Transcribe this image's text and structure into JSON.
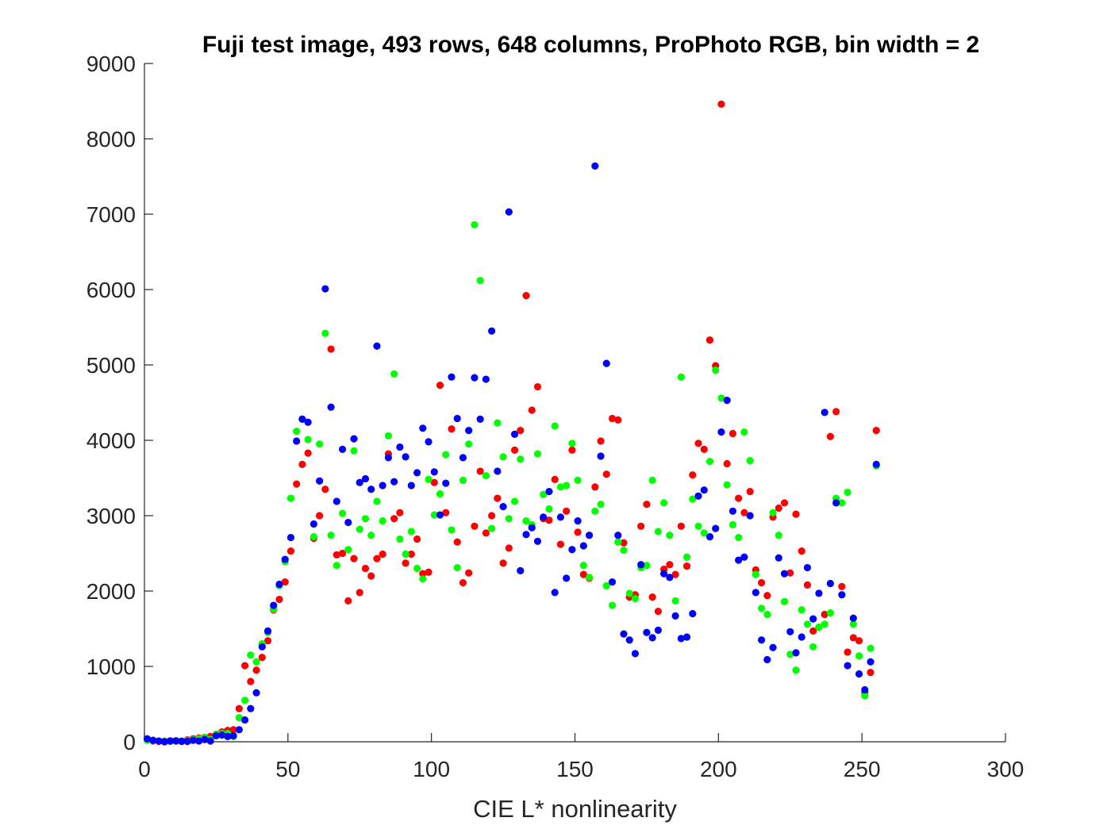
{
  "chart_data": {
    "type": "scatter",
    "title": "Fuji test image, 493 rows, 648 columns, ProPhoto RGB, bin width = 2",
    "xlabel": "CIE L* nonlinearity",
    "ylabel": "",
    "xlim": [
      0,
      300
    ],
    "ylim": [
      0,
      9000
    ],
    "xticks": [
      0,
      50,
      100,
      150,
      200,
      250,
      300
    ],
    "yticks": [
      0,
      1000,
      2000,
      3000,
      4000,
      5000,
      6000,
      7000,
      8000,
      9000
    ],
    "xtick_labels": [
      "0",
      "50",
      "100",
      "150",
      "200",
      "250",
      "300"
    ],
    "ytick_labels": [
      "0",
      "1000",
      "2000",
      "3000",
      "4000",
      "5000",
      "6000",
      "7000",
      "8000",
      "9000"
    ],
    "grid": false,
    "legend": "none",
    "x": [
      1,
      3,
      5,
      7,
      9,
      11,
      13,
      15,
      17,
      19,
      21,
      23,
      25,
      27,
      29,
      31,
      33,
      35,
      37,
      39,
      41,
      43,
      45,
      47,
      49,
      51,
      53,
      55,
      57,
      59,
      61,
      63,
      65,
      67,
      69,
      71,
      73,
      75,
      77,
      79,
      81,
      83,
      85,
      87,
      89,
      91,
      93,
      95,
      97,
      99,
      101,
      103,
      105,
      107,
      109,
      111,
      113,
      115,
      117,
      119,
      121,
      123,
      125,
      127,
      129,
      131,
      133,
      135,
      137,
      139,
      141,
      143,
      145,
      147,
      149,
      151,
      153,
      155,
      157,
      159,
      161,
      163,
      165,
      167,
      169,
      171,
      173,
      175,
      177,
      179,
      181,
      183,
      185,
      187,
      189,
      191,
      193,
      195,
      197,
      199,
      201,
      203,
      205,
      207,
      209,
      211,
      213,
      215,
      217,
      219,
      221,
      223,
      225,
      227,
      229,
      231,
      233,
      235,
      237,
      239,
      241,
      243,
      245,
      247,
      249,
      251,
      253,
      255
    ],
    "series": [
      {
        "color": "#ff0000",
        "values": [
          30,
          10,
          5,
          8,
          12,
          15,
          10,
          25,
          40,
          50,
          60,
          70,
          100,
          130,
          150,
          160,
          440,
          1010,
          800,
          950,
          1120,
          1340,
          1750,
          1890,
          2120,
          2530,
          3420,
          3680,
          3830,
          2700,
          3000,
          3350,
          5210,
          2480,
          2500,
          1870,
          2430,
          1980,
          2300,
          2200,
          2430,
          2490,
          3820,
          2960,
          3040,
          2370,
          2490,
          2690,
          2230,
          2250,
          3440,
          4730,
          3040,
          4150,
          2650,
          2110,
          2240,
          2860,
          3590,
          2770,
          3000,
          3230,
          2370,
          2570,
          3870,
          4130,
          5920,
          4400,
          4710,
          2960,
          2940,
          3480,
          2620,
          3060,
          3870,
          2780,
          2220,
          2170,
          3380,
          3990,
          3550,
          4290,
          4270,
          2640,
          1920,
          1950,
          2860,
          3150,
          1920,
          1730,
          2290,
          2350,
          2220,
          2860,
          2330,
          3540,
          3960,
          3880,
          5330,
          4990,
          8460,
          3690,
          4090,
          3230,
          3040,
          3320,
          2280,
          2110,
          1940,
          2980,
          3100,
          3170,
          2240,
          3020,
          2530,
          2080,
          1470,
          1520,
          1690,
          4050,
          4380,
          2060,
          1190,
          1380,
          1340,
          650,
          920,
          4130
        ]
      },
      {
        "color": "#00ff00",
        "values": [
          20,
          15,
          10,
          5,
          5,
          10,
          10,
          15,
          30,
          40,
          60,
          30,
          100,
          110,
          110,
          70,
          320,
          550,
          1150,
          1060,
          1300,
          1450,
          1760,
          2070,
          2390,
          3230,
          4120,
          4280,
          4010,
          2720,
          3950,
          5420,
          2740,
          2340,
          3030,
          2550,
          3860,
          2820,
          2960,
          2740,
          3190,
          2930,
          4060,
          4880,
          2690,
          2490,
          2790,
          2300,
          2160,
          3480,
          3010,
          3290,
          3810,
          2810,
          2310,
          3470,
          3950,
          6860,
          6120,
          3530,
          2830,
          4230,
          3780,
          2960,
          3190,
          3750,
          2930,
          2880,
          3820,
          3280,
          3090,
          4190,
          3380,
          3400,
          3960,
          3470,
          2340,
          2180,
          3060,
          3150,
          2070,
          1810,
          2650,
          2540,
          1970,
          1900,
          2310,
          2340,
          3470,
          2790,
          3170,
          2740,
          1870,
          4840,
          2450,
          3220,
          2860,
          2770,
          3720,
          4930,
          4560,
          3410,
          2880,
          2710,
          4110,
          3730,
          2220,
          1770,
          1690,
          3040,
          2740,
          1860,
          1160,
          950,
          1750,
          1560,
          1260,
          1520,
          1560,
          1710,
          3230,
          3170,
          3310,
          1560,
          1140,
          610,
          1240,
          3660
        ]
      },
      {
        "color": "#0000ff",
        "values": [
          40,
          20,
          10,
          0,
          10,
          10,
          5,
          5,
          20,
          10,
          30,
          10,
          80,
          90,
          70,
          80,
          160,
          290,
          440,
          650,
          1260,
          1470,
          1810,
          2090,
          2420,
          2710,
          3990,
          4280,
          4240,
          2890,
          3460,
          6010,
          4440,
          3190,
          3880,
          2910,
          4020,
          3440,
          3490,
          3350,
          5250,
          3400,
          3770,
          3450,
          3910,
          3780,
          3400,
          3570,
          4160,
          3980,
          3580,
          3010,
          3430,
          4840,
          4290,
          3770,
          4130,
          4830,
          4280,
          4810,
          5450,
          3590,
          3120,
          7030,
          4080,
          2270,
          2750,
          2840,
          2660,
          2980,
          3320,
          1980,
          2980,
          2170,
          2550,
          2930,
          2600,
          2740,
          7640,
          3790,
          5020,
          2120,
          2740,
          1430,
          1350,
          1170,
          2350,
          1450,
          1380,
          1480,
          2230,
          2180,
          1670,
          1370,
          1390,
          1700,
          3260,
          3340,
          2720,
          2830,
          4110,
          4530,
          3060,
          2410,
          2450,
          3000,
          1980,
          1350,
          1090,
          1250,
          2440,
          2230,
          1460,
          1180,
          1390,
          2310,
          1630,
          1970,
          4370,
          2100,
          3170,
          1950,
          1010,
          1640,
          900,
          690,
          1060,
          3680
        ]
      }
    ]
  }
}
